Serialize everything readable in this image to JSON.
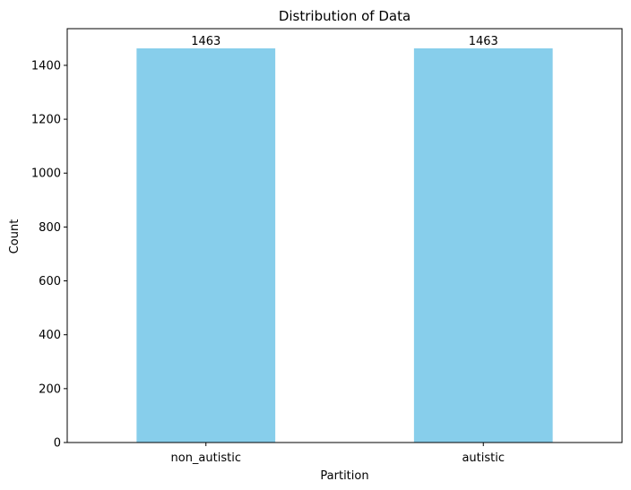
{
  "chart_data": {
    "type": "bar",
    "title": "Distribution of Data",
    "xlabel": "Partition",
    "ylabel": "Count",
    "categories": [
      "non_autistic",
      "autistic"
    ],
    "values": [
      1463,
      1463
    ],
    "data_labels": [
      "1463",
      "1463"
    ],
    "ylim": [
      0,
      1536.15
    ],
    "yticks": [
      0,
      200,
      400,
      600,
      800,
      1000,
      1200,
      1400
    ],
    "grid": false,
    "legend": "none",
    "bar_color": "#87CEEB"
  }
}
